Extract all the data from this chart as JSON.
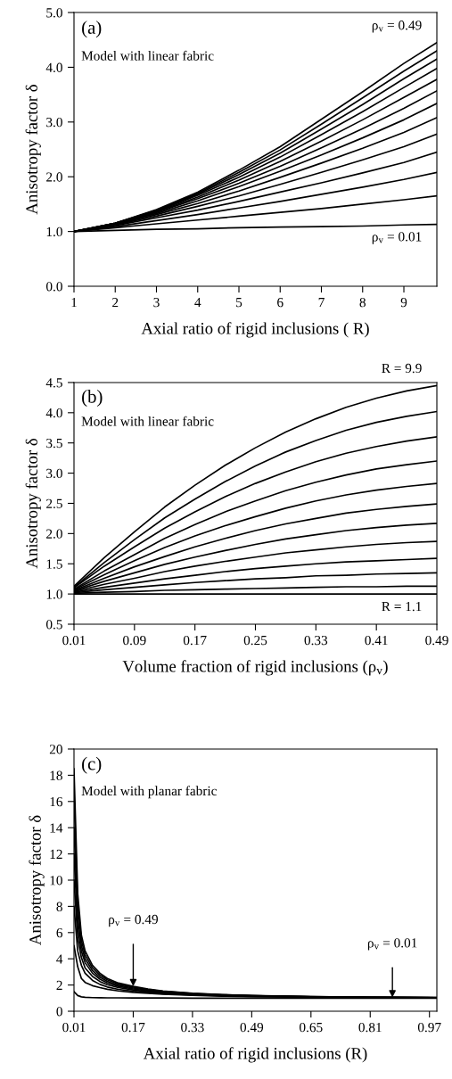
{
  "chart_data": [
    {
      "type": "line",
      "xlabel": "Axial ratio of rigid inclusions ( R)",
      "ylabel": "Anisotropy factor δ",
      "x": [
        1,
        2,
        3,
        4,
        5,
        6,
        7,
        8,
        9,
        9.8
      ],
      "xlim": [
        1,
        9.8
      ],
      "xticks": [
        1,
        2,
        3,
        4,
        5,
        6,
        7,
        8,
        9
      ],
      "ylim": [
        0,
        5
      ],
      "yticks": [
        {
          "value": 0,
          "label": "0.0"
        },
        {
          "value": 1,
          "label": "1.0"
        },
        {
          "value": 2,
          "label": "2.0"
        },
        {
          "value": 3,
          "label": "3.0"
        },
        {
          "value": 4,
          "label": "4.0"
        },
        {
          "value": 5,
          "label": "5.0"
        }
      ],
      "grid": false,
      "legend": false,
      "line_style": "solid",
      "annotations": [
        "(a)",
        "Model with linear fabric",
        {
          "text": "ρ$_{v}$ = 0.49",
          "x": 9.8,
          "y": 4.45
        },
        {
          "text": "ρ$_{v}$ = 0.01",
          "x": 9.8,
          "y": 1.13
        }
      ],
      "series": [
        {
          "color": "#000000",
          "values": [
            1,
            1.15,
            1.4,
            1.72,
            2.12,
            2.55,
            3.05,
            3.55,
            4.07,
            4.45
          ]
        },
        {
          "color": "#000000",
          "values": [
            1,
            1.15,
            1.39,
            1.7,
            2.08,
            2.49,
            2.96,
            3.44,
            3.93,
            4.3
          ]
        },
        {
          "color": "#000000",
          "values": [
            1,
            1.15,
            1.38,
            1.68,
            2.04,
            2.43,
            2.87,
            3.32,
            3.79,
            4.15
          ]
        },
        {
          "color": "#000000",
          "values": [
            1,
            1.15,
            1.37,
            1.66,
            1.99,
            2.36,
            2.77,
            3.19,
            3.63,
            3.98
          ]
        },
        {
          "color": "#000000",
          "values": [
            1,
            1.14,
            1.36,
            1.63,
            1.94,
            2.28,
            2.65,
            3.04,
            3.45,
            3.78
          ]
        },
        {
          "color": "#000000",
          "values": [
            1,
            1.14,
            1.35,
            1.6,
            1.88,
            2.19,
            2.53,
            2.88,
            3.25,
            3.57
          ]
        },
        {
          "color": "#000000",
          "values": [
            1,
            1.14,
            1.33,
            1.56,
            1.82,
            2.1,
            2.4,
            2.71,
            3.04,
            3.34
          ]
        },
        {
          "color": "#000000",
          "values": [
            1,
            1.13,
            1.31,
            1.51,
            1.74,
            1.99,
            2.25,
            2.52,
            2.81,
            3.08
          ]
        },
        {
          "color": "#000000",
          "values": [
            1,
            1.12,
            1.28,
            1.46,
            1.65,
            1.86,
            2.08,
            2.31,
            2.55,
            2.78
          ]
        },
        {
          "color": "#000000",
          "values": [
            1,
            1.11,
            1.25,
            1.39,
            1.55,
            1.72,
            1.89,
            2.07,
            2.26,
            2.45
          ]
        },
        {
          "color": "#000000",
          "values": [
            1,
            1.09,
            1.2,
            1.31,
            1.43,
            1.55,
            1.68,
            1.81,
            1.95,
            2.08
          ]
        },
        {
          "color": "#000000",
          "values": [
            1,
            1.07,
            1.14,
            1.21,
            1.28,
            1.35,
            1.42,
            1.5,
            1.58,
            1.65
          ]
        },
        {
          "color": "#000000",
          "values": [
            1,
            1.02,
            1.04,
            1.05,
            1.07,
            1.08,
            1.09,
            1.1,
            1.12,
            1.13
          ]
        }
      ]
    },
    {
      "type": "line",
      "xlabel": "Volume fraction of rigid inclusions (ρ$_{v}$)",
      "ylabel": "Anisotropy factor δ",
      "x": [
        0.01,
        0.05,
        0.09,
        0.13,
        0.17,
        0.21,
        0.25,
        0.29,
        0.33,
        0.37,
        0.41,
        0.45,
        0.49
      ],
      "xlim": [
        0.01,
        0.49
      ],
      "xticks": [
        0.01,
        0.09,
        0.17,
        0.25,
        0.33,
        0.41,
        0.49
      ],
      "ylim": [
        0.5,
        4.5
      ],
      "yticks": [
        0.5,
        {
          "value": 1,
          "label": "1.0"
        },
        1.5,
        {
          "value": 2,
          "label": "2.0"
        },
        2.5,
        {
          "value": 3,
          "label": "3.0"
        },
        3.5,
        {
          "value": 4,
          "label": "4.0"
        },
        4.5
      ],
      "grid": false,
      "legend": false,
      "line_style": "solid",
      "annotations": [
        "(b)",
        "Model with linear fabric",
        {
          "text": "R = 9.9",
          "x": 0.49,
          "y": 4.45
        },
        {
          "text": "R = 1.1",
          "x": 0.49,
          "y": 1.0
        }
      ],
      "series": [
        {
          "color": "#000000",
          "values": [
            1.13,
            1.6,
            2.03,
            2.44,
            2.8,
            3.13,
            3.42,
            3.68,
            3.9,
            4.09,
            4.24,
            4.36,
            4.45
          ]
        },
        {
          "color": "#000000",
          "values": [
            1.11,
            1.52,
            1.9,
            2.26,
            2.57,
            2.86,
            3.12,
            3.35,
            3.54,
            3.71,
            3.84,
            3.94,
            4.02
          ]
        },
        {
          "color": "#000000",
          "values": [
            1.1,
            1.46,
            1.78,
            2.09,
            2.36,
            2.61,
            2.83,
            3.02,
            3.19,
            3.33,
            3.44,
            3.53,
            3.6
          ]
        },
        {
          "color": "#000000",
          "values": [
            1.08,
            1.38,
            1.65,
            1.92,
            2.15,
            2.36,
            2.54,
            2.71,
            2.85,
            2.97,
            3.07,
            3.14,
            3.2
          ]
        },
        {
          "color": "#000000",
          "values": [
            1.07,
            1.32,
            1.55,
            1.77,
            1.96,
            2.13,
            2.28,
            2.42,
            2.54,
            2.64,
            2.72,
            2.78,
            2.83
          ]
        },
        {
          "color": "#000000",
          "values": [
            1.06,
            1.26,
            1.45,
            1.62,
            1.78,
            1.92,
            2.05,
            2.16,
            2.25,
            2.34,
            2.4,
            2.45,
            2.49
          ]
        },
        {
          "color": "#000000",
          "values": [
            1.05,
            1.21,
            1.35,
            1.49,
            1.61,
            1.72,
            1.82,
            1.91,
            1.98,
            2.05,
            2.1,
            2.14,
            2.17
          ]
        },
        {
          "color": "#000000",
          "values": [
            1.04,
            1.16,
            1.26,
            1.37,
            1.46,
            1.54,
            1.61,
            1.68,
            1.73,
            1.78,
            1.82,
            1.85,
            1.87
          ]
        },
        {
          "color": "#000000",
          "values": [
            1.03,
            1.11,
            1.18,
            1.25,
            1.31,
            1.37,
            1.42,
            1.46,
            1.5,
            1.53,
            1.55,
            1.57,
            1.59
          ]
        },
        {
          "color": "#000000",
          "values": [
            1.02,
            1.07,
            1.11,
            1.15,
            1.19,
            1.22,
            1.25,
            1.27,
            1.3,
            1.31,
            1.33,
            1.34,
            1.35
          ]
        },
        {
          "color": "#000000",
          "values": [
            1.01,
            1.03,
            1.04,
            1.06,
            1.07,
            1.08,
            1.09,
            1.1,
            1.11,
            1.12,
            1.12,
            1.13,
            1.13
          ]
        },
        {
          "color": "#000000",
          "values": [
            1.0,
            1.0,
            1.0,
            1.0,
            1.0,
            1.0,
            1.0,
            1.0,
            1.0,
            1.0,
            1.0,
            1.0,
            1.0
          ]
        }
      ]
    },
    {
      "type": "line",
      "xlabel": "Axial ratio of rigid inclusions (R)",
      "ylabel": "Anisotropy factor δ",
      "x": [
        0.01,
        0.02,
        0.03,
        0.04,
        0.06,
        0.08,
        0.1,
        0.13,
        0.17,
        0.21,
        0.25,
        0.33,
        0.41,
        0.49,
        0.65,
        0.81,
        0.99
      ],
      "xlim": [
        0.01,
        0.99
      ],
      "xticks": [
        0.01,
        0.17,
        0.33,
        0.49,
        0.65,
        0.81,
        0.97
      ],
      "ylim": [
        0,
        20
      ],
      "yticks": [
        0,
        2,
        4,
        6,
        8,
        10,
        12,
        14,
        16,
        18,
        20
      ],
      "grid": false,
      "legend": false,
      "line_style": "solid",
      "annotations": [
        "(c)",
        "Model with planar fabric",
        {
          "text": "ρ$_{v}$ = 0.49",
          "x": 0.17,
          "y": 1.9
        },
        {
          "text": "ρ$_{v}$ = 0.01",
          "x": 0.87,
          "y": 1.05
        }
      ],
      "series": [
        {
          "color": "#000000",
          "values": [
            18.5,
            9.0,
            5.8,
            4.6,
            3.5,
            2.9,
            2.5,
            2.15,
            1.9,
            1.7,
            1.55,
            1.38,
            1.27,
            1.2,
            1.12,
            1.07,
            1.05
          ]
        },
        {
          "color": "#000000",
          "values": [
            16.5,
            8.2,
            5.4,
            4.3,
            3.3,
            2.75,
            2.4,
            2.07,
            1.84,
            1.65,
            1.52,
            1.36,
            1.26,
            1.19,
            1.11,
            1.07,
            1.05
          ]
        },
        {
          "color": "#000000",
          "values": [
            14,
            7.2,
            5.0,
            4.0,
            3.1,
            2.6,
            2.28,
            1.98,
            1.77,
            1.6,
            1.48,
            1.33,
            1.24,
            1.18,
            1.1,
            1.06,
            1.04
          ]
        },
        {
          "color": "#000000",
          "values": [
            12,
            6.4,
            4.6,
            3.7,
            2.9,
            2.45,
            2.16,
            1.9,
            1.7,
            1.55,
            1.44,
            1.3,
            1.22,
            1.17,
            1.1,
            1.06,
            1.04
          ]
        },
        {
          "color": "#000000",
          "values": [
            10,
            5.6,
            4.1,
            3.3,
            2.65,
            2.27,
            2.02,
            1.8,
            1.62,
            1.49,
            1.4,
            1.27,
            1.2,
            1.15,
            1.09,
            1.05,
            1.03
          ]
        },
        {
          "color": "#000000",
          "values": [
            8,
            4.6,
            3.5,
            2.9,
            2.35,
            2.05,
            1.85,
            1.67,
            1.53,
            1.42,
            1.34,
            1.24,
            1.18,
            1.13,
            1.08,
            1.05,
            1.03
          ]
        },
        {
          "color": "#000000",
          "values": [
            5,
            3.4,
            2.5,
            2.2,
            1.95,
            1.8,
            1.68,
            1.55,
            1.44,
            1.36,
            1.3,
            1.21,
            1.15,
            1.12,
            1.07,
            1.04,
            1.02
          ]
        },
        {
          "color": "#000000",
          "values": [
            1.5,
            1.2,
            1.1,
            1.06,
            1.04,
            1.03,
            1.02,
            1.02,
            1.01,
            1.01,
            1.01,
            1.0,
            1.0,
            1.0,
            1.0,
            1.0,
            1.0
          ]
        }
      ]
    }
  ]
}
